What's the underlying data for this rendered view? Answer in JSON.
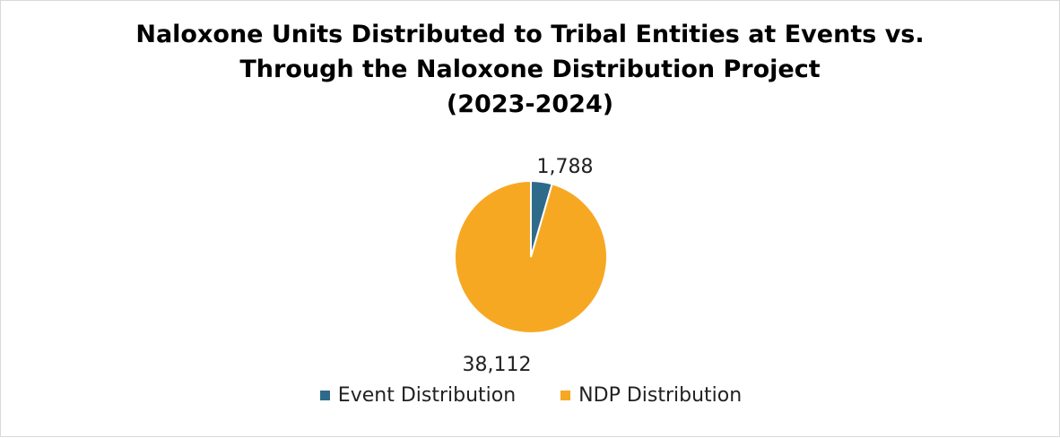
{
  "chart_data": {
    "type": "pie",
    "title": [
      "Naloxone Units Distributed to Tribal Entities at Events vs.",
      "Through the Naloxone Distribution Project",
      "(2023-2024)"
    ],
    "slices": [
      {
        "label": "Event Distribution",
        "value": 1788,
        "display": "1,788",
        "color": "#2e6b8a"
      },
      {
        "label": "NDP Distribution",
        "value": 38112,
        "display": "38,112",
        "color": "#f7a823"
      }
    ],
    "legend_position": "bottom"
  }
}
